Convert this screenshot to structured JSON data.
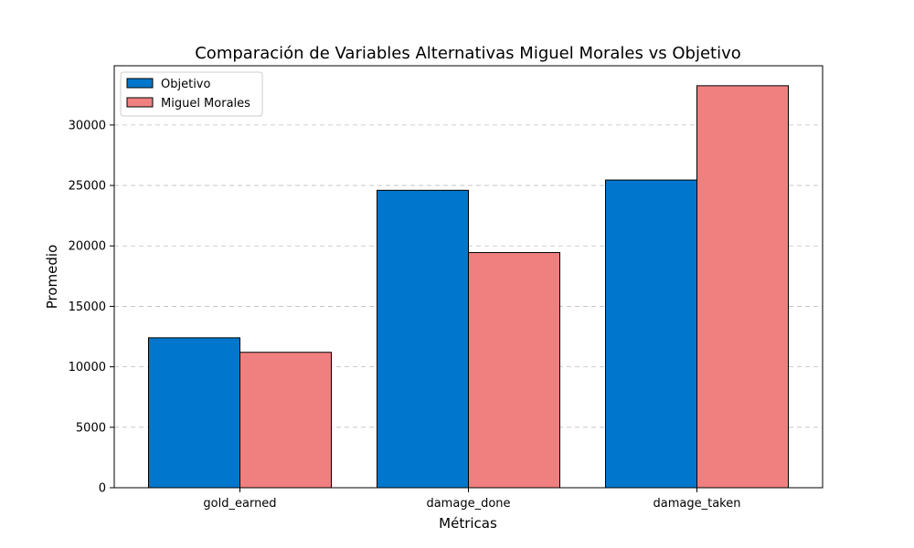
{
  "chart_data": {
    "type": "bar",
    "title": "Comparación de Variables Alternativas Miguel Morales vs Objetivo",
    "xlabel": "Métricas",
    "ylabel": "Promedio",
    "categories": [
      "gold_earned",
      "damage_done",
      "damage_taken"
    ],
    "series": [
      {
        "name": "Objetivo",
        "values": [
          12400,
          24600,
          25450
        ],
        "color": "#0077cc"
      },
      {
        "name": "Miguel Morales",
        "values": [
          11200,
          19450,
          33250
        ],
        "color": "#f08080"
      }
    ],
    "ylim": [
      0,
      34900
    ],
    "yticks": [
      0,
      5000,
      10000,
      15000,
      20000,
      25000,
      30000
    ],
    "grid": "y",
    "legend": "top-left"
  }
}
